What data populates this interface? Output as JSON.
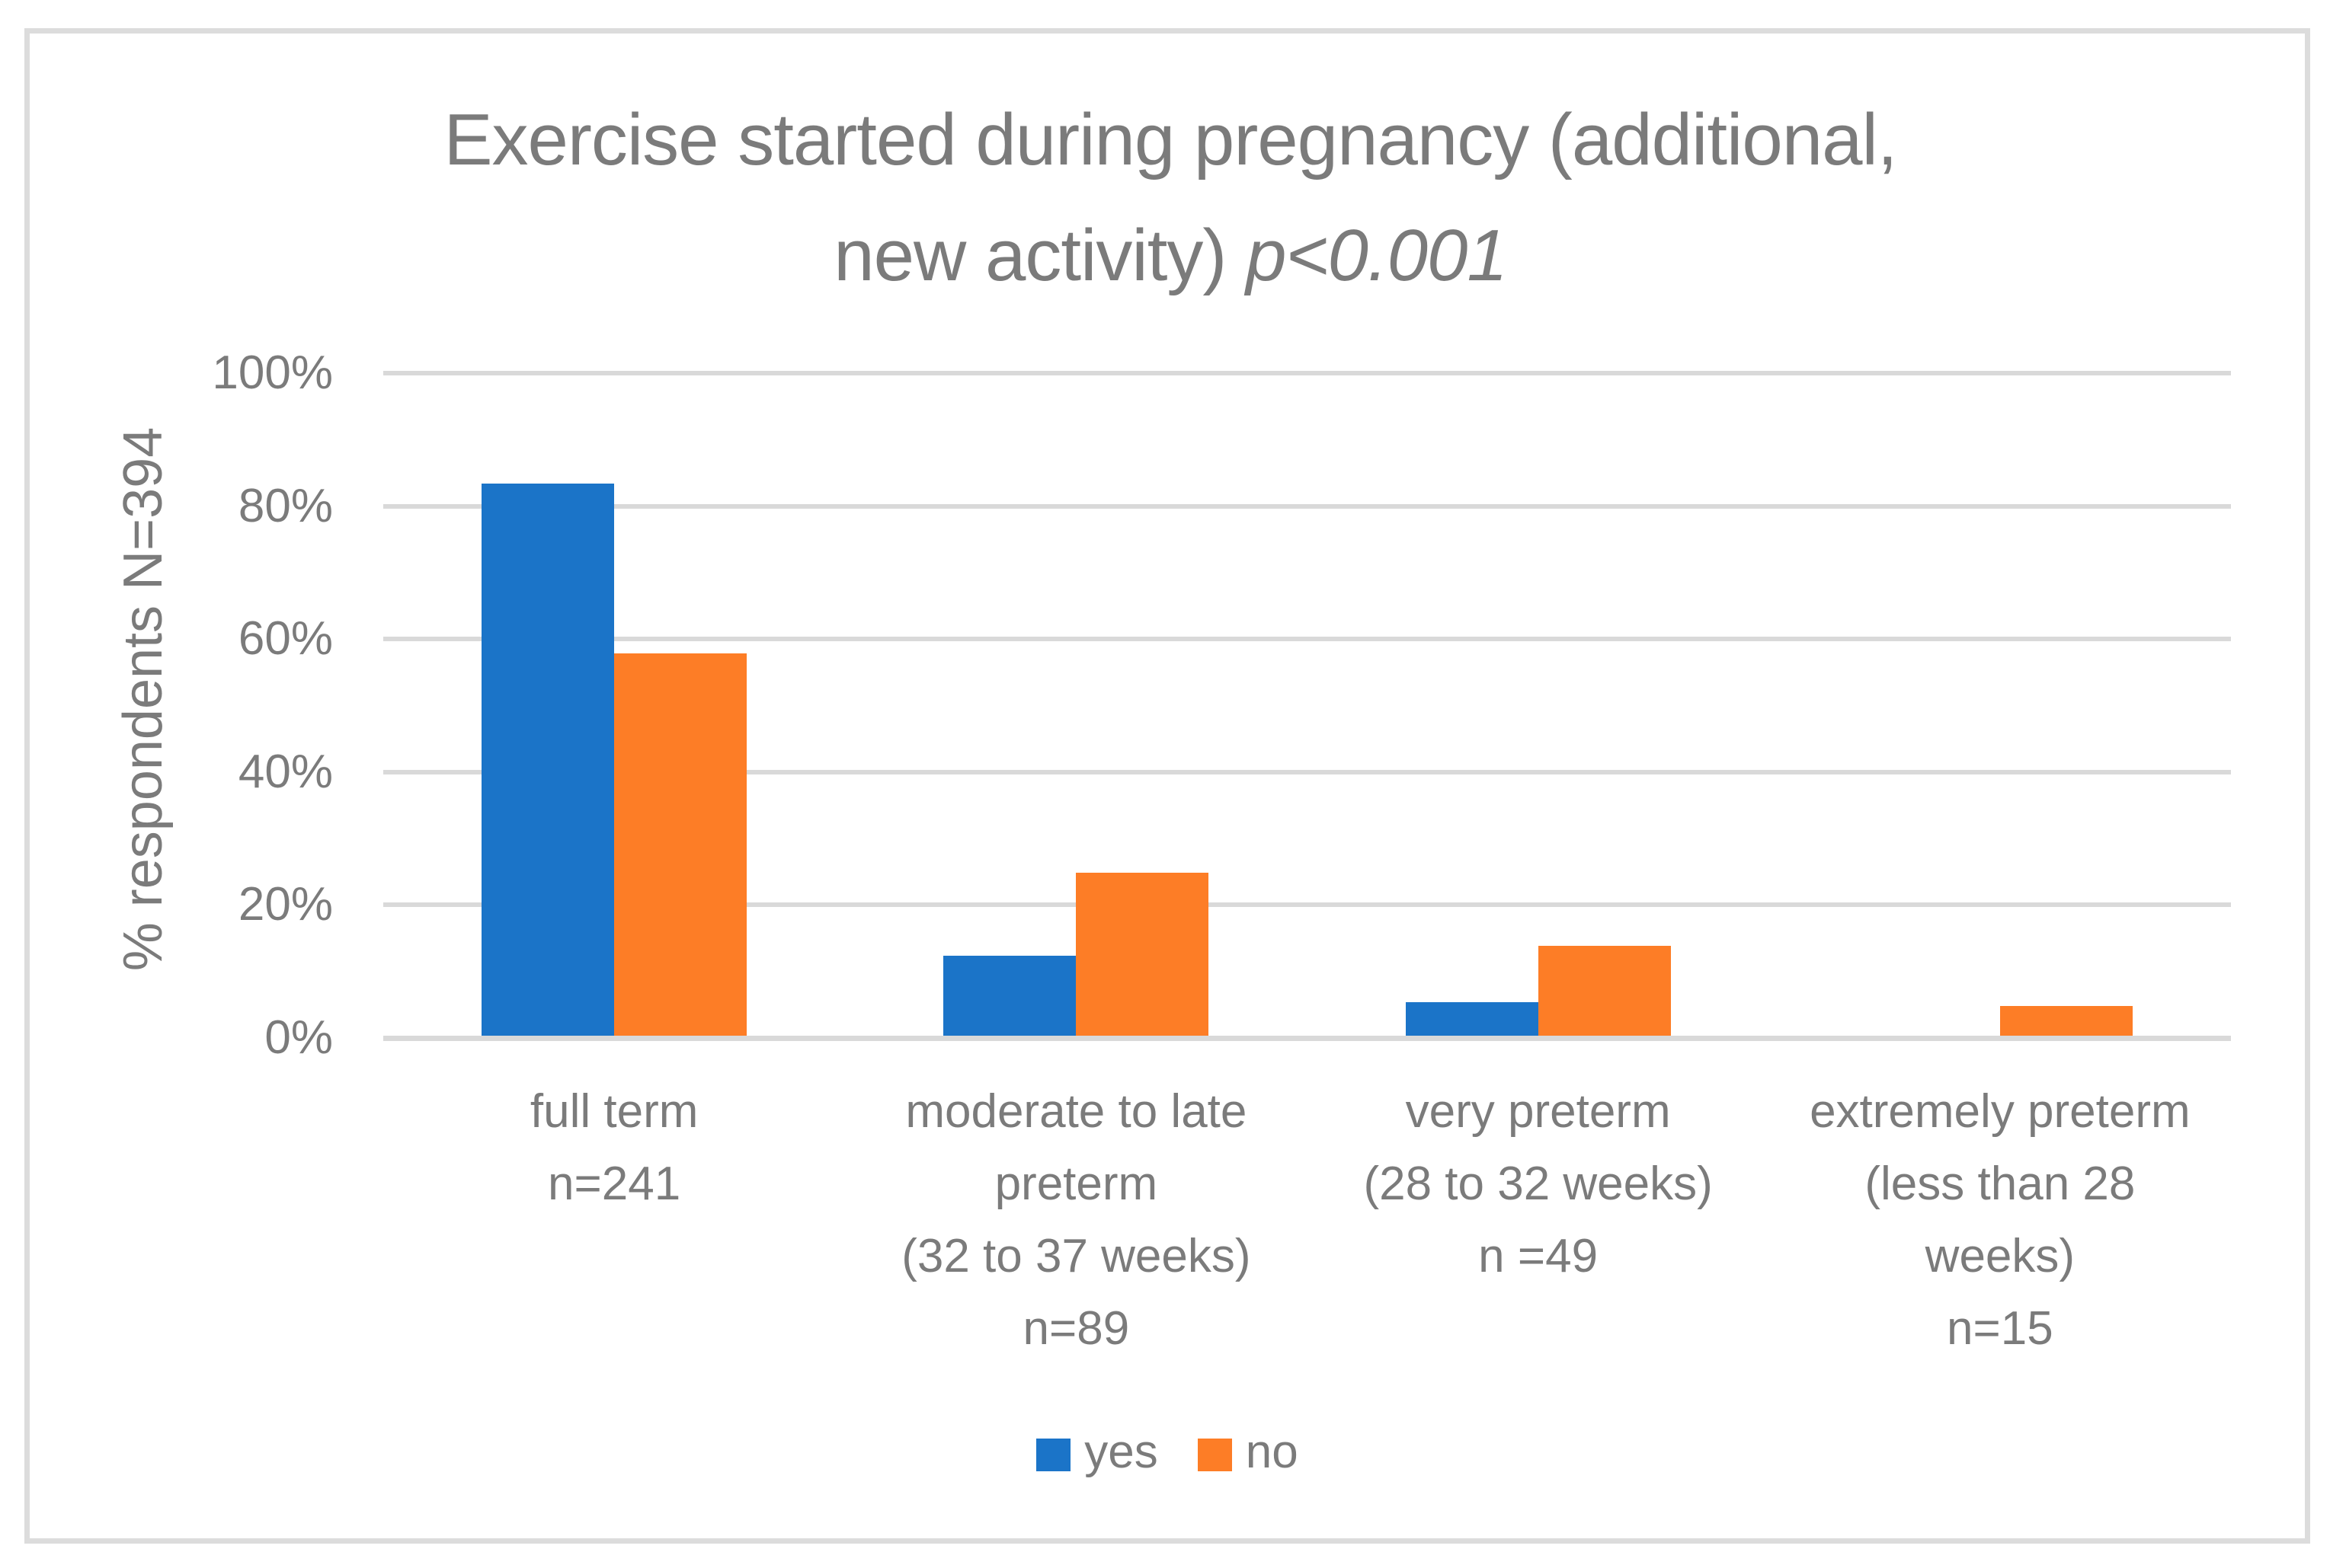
{
  "figure": {
    "title_line1": "Exercise started during pregnancy (additional,",
    "title_line2_plain": "new activity) ",
    "title_line2_italic": "p<0.001"
  },
  "chart_data": {
    "type": "bar",
    "title": "Exercise started during pregnancy (additional, new activity) p<0.001",
    "ylabel": "% respondents N=394",
    "xlabel": "",
    "categories": [
      {
        "label": "full term n=241",
        "lines": [
          "full term",
          "n=241"
        ]
      },
      {
        "label": "moderate to late preterm (32 to 37 weeks) n=89",
        "lines": [
          "moderate to late",
          "preterm",
          "(32 to 37 weeks)",
          "n=89"
        ]
      },
      {
        "label": "very preterm (28 to 32 weeks) n =49",
        "lines": [
          "very preterm",
          "(28 to 32 weeks)",
          "n =49"
        ]
      },
      {
        "label": "extremely preterm (less than 28 weeks) n=15",
        "lines": [
          "extremely preterm",
          "(less than 28",
          "weeks)",
          "n=15"
        ]
      }
    ],
    "series": [
      {
        "name": "yes",
        "color": "#1b74c8",
        "values": [
          83,
          12,
          5,
          0
        ]
      },
      {
        "name": "no",
        "color": "#fd7d26",
        "values": [
          57.5,
          24.5,
          13.5,
          4.5
        ]
      }
    ],
    "ylim": [
      0,
      100
    ],
    "ytick_step": 20,
    "ytick_labels": [
      "0%",
      "20%",
      "40%",
      "60%",
      "80%",
      "100%"
    ],
    "grid": true,
    "legend_position": "bottom",
    "colors": {
      "text": "#7b7b7b",
      "gridline": "#d9d9d9",
      "frame_border": "#dcdcdc",
      "background": "#ffffff"
    }
  }
}
